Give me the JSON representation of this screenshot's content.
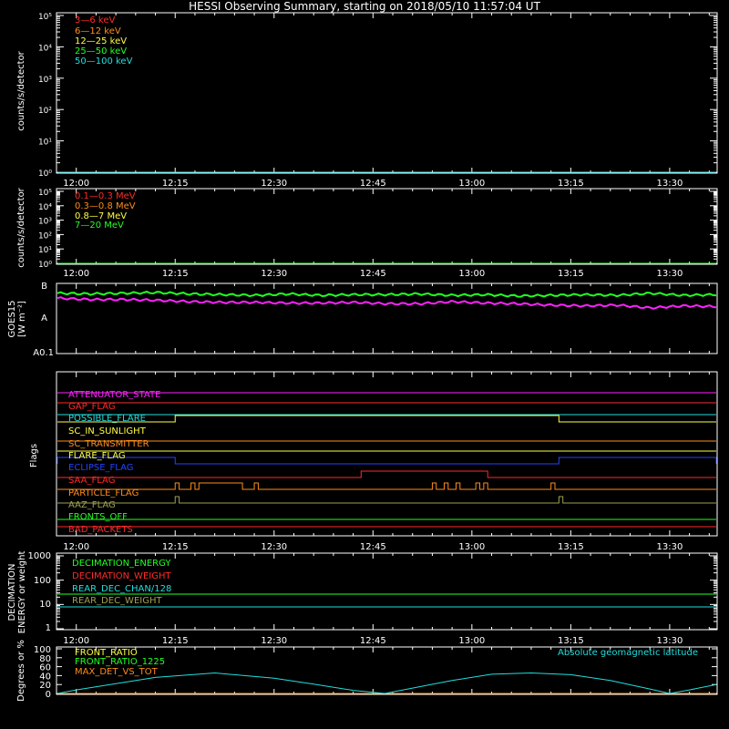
{
  "title": "HESSI Observing Summary, starting on 2018/05/10 11:57:04 UT",
  "colors": {
    "background": "#000000",
    "axes": "#ffffff",
    "red": "#ff2a2a",
    "orange": "#ff8c1a",
    "yellow": "#ffff44",
    "green": "#22ff22",
    "cyan": "#22dddd",
    "magenta": "#ff22ff",
    "blue": "#2244ff",
    "olive": "#a0a050"
  },
  "chart_data": [
    {
      "id": "count-rates",
      "type": "line",
      "ylabel": "counts/s/detector",
      "y_scale": "log",
      "ylim": [
        1,
        100000
      ],
      "y_tick_labels": [
        "10⁰",
        "10¹",
        "10²",
        "10³",
        "10⁴",
        "10⁵"
      ],
      "x_tick_labels": [
        "12:00",
        "12:15",
        "12:30",
        "12:45",
        "13:00",
        "13:15",
        "13:30"
      ],
      "series": [
        {
          "name": "3—6 keV",
          "color": "#ff2a2a",
          "values": []
        },
        {
          "name": "6—12 keV",
          "color": "#ff8c1a",
          "values": []
        },
        {
          "name": "12—25 keV",
          "color": "#ffff44",
          "values": []
        },
        {
          "name": "25—50 keV",
          "color": "#22ff22",
          "values": []
        },
        {
          "name": "50—100 keV",
          "color": "#22dddd",
          "values": [
            1,
            1
          ]
        }
      ]
    },
    {
      "id": "high-energy-rates",
      "type": "line",
      "ylabel": "counts/s/detector",
      "y_scale": "log",
      "ylim": [
        1,
        100000
      ],
      "y_tick_labels": [
        "10⁰",
        "10¹",
        "10²",
        "10³",
        "10⁴",
        "10⁵"
      ],
      "x_tick_labels": [
        "12:00",
        "12:15",
        "12:30",
        "12:45",
        "13:00",
        "13:15",
        "13:30"
      ],
      "series": [
        {
          "name": "0.1—0.3 MeV",
          "color": "#ff2a2a",
          "values": []
        },
        {
          "name": "0.3—0.8 MeV",
          "color": "#ff8c1a",
          "values": []
        },
        {
          "name": "0.8—7 MeV",
          "color": "#ffff44",
          "values": []
        },
        {
          "name": "7—20 MeV",
          "color": "#22ff22",
          "values": [
            1,
            1
          ]
        }
      ]
    },
    {
      "id": "goes",
      "type": "line",
      "ylabel": "GOES15",
      "ylabel2": "[W m⁻²]",
      "y_tick_labels": [
        "B",
        "A",
        "A0.1"
      ],
      "series": [
        {
          "color": "#22ff22",
          "x": [
            0,
            5,
            10,
            15,
            20,
            25,
            30,
            35,
            40,
            45,
            50,
            55,
            60,
            65,
            70,
            75,
            80,
            85,
            90,
            95,
            100
          ],
          "values": [
            8.6,
            8.5,
            8.6,
            8.7,
            8.5,
            8.4,
            8.3,
            8.5,
            8.3,
            8.4,
            8.4,
            8.5,
            8.3,
            8.4,
            8.2,
            8.3,
            8.4,
            8.3,
            8.6,
            8.3,
            8.4
          ]
        },
        {
          "color": "#ff22ff",
          "x": [
            0,
            5,
            10,
            15,
            20,
            25,
            30,
            35,
            40,
            45,
            50,
            55,
            60,
            65,
            70,
            75,
            80,
            85,
            90,
            95,
            100
          ],
          "values": [
            7.9,
            7.7,
            7.7,
            7.6,
            7.4,
            7.3,
            7.3,
            7.2,
            7.2,
            7.3,
            7.1,
            7.1,
            7.4,
            7.2,
            7.1,
            6.9,
            6.8,
            6.9,
            6.5,
            6.8,
            6.7
          ]
        }
      ]
    },
    {
      "id": "flags",
      "type": "line",
      "ylabel": "Flags",
      "x_tick_labels": [
        "12:00",
        "12:15",
        "12:30",
        "12:45",
        "13:00",
        "13:15",
        "13:30"
      ],
      "flags": [
        {
          "name": "ATTENUATOR_STATE",
          "color": "#ff22ff",
          "segments": []
        },
        {
          "name": "GAP_FLAG",
          "color": "#ff2a2a",
          "segments": []
        },
        {
          "name": "POSSIBLE_FLARE",
          "color": "#22dddd",
          "segments": []
        },
        {
          "name": "SC_IN_SUNLIGHT",
          "color": "#ffff44",
          "segments": [
            [
              12.25,
              13.22
            ]
          ]
        },
        {
          "name": "SC_TRANSMITTER",
          "color": "#ff8c1a",
          "segments": []
        },
        {
          "name": "FLARE_FLAG",
          "color": "#ffff44",
          "segments": []
        },
        {
          "name": "ECLIPSE_FLAG",
          "color": "#2244ff",
          "segments": [
            [
              11.95,
              12.25
            ],
            [
              13.22,
              13.62
            ]
          ]
        },
        {
          "name": "SAA_FLAG",
          "color": "#ff2a2a",
          "segments": [
            [
              12.72,
              13.04
            ]
          ]
        },
        {
          "name": "PARTICLE_FLAG",
          "color": "#ff8c1a",
          "segments": [
            [
              12.25,
              12.26
            ],
            [
              12.29,
              12.3
            ],
            [
              12.31,
              12.42
            ],
            [
              12.45,
              12.46
            ],
            [
              12.9,
              12.91
            ],
            [
              12.93,
              12.94
            ],
            [
              12.96,
              12.97
            ],
            [
              13.01,
              13.02
            ],
            [
              13.03,
              13.04
            ],
            [
              13.2,
              13.21
            ]
          ]
        },
        {
          "name": "AAZ_FLAG",
          "color": "#a0a050",
          "segments": [
            [
              12.25,
              12.26
            ],
            [
              13.22,
              13.23
            ]
          ]
        },
        {
          "name": "FRONTS_OFF",
          "color": "#22ff22",
          "segments": []
        },
        {
          "name": "BAD_PACKETS",
          "color": "#ff2a2a",
          "segments": []
        }
      ]
    },
    {
      "id": "decimation",
      "type": "line",
      "ylabel": "DECIMATION",
      "ylabel2": "ENERGY or weight",
      "y_scale": "log",
      "ylim": [
        1,
        1000
      ],
      "y_tick_labels": [
        "1",
        "10",
        "100",
        "1000"
      ],
      "x_tick_labels": [
        "12:00",
        "12:15",
        "12:30",
        "12:45",
        "13:00",
        "13:15",
        "13:30"
      ],
      "series": [
        {
          "name": "DECIMATION_ENERGY",
          "color": "#22ff22",
          "values": [
            30,
            30
          ]
        },
        {
          "name": "DECIMATION_WEIGHT",
          "color": "#ff2a2a",
          "values": []
        },
        {
          "name": "REAR_DEC_CHAN/128",
          "color": "#22dddd",
          "values": [
            8,
            8
          ]
        },
        {
          "name": "REAR_DEC_WEIGHT",
          "color": "#a0a050",
          "values": []
        }
      ]
    },
    {
      "id": "ratios",
      "type": "line",
      "ylabel": "Degrees or %",
      "ylim": [
        0,
        100
      ],
      "y_tick_labels": [
        "0",
        "20",
        "40",
        "60",
        "80",
        "100"
      ],
      "series": [
        {
          "name": "FRONT_RATIO",
          "color": "#ffff44",
          "values": []
        },
        {
          "name": "FRONT_RATIO_1225",
          "color": "#22ff22",
          "values": []
        },
        {
          "name": "MAX_DET_VS_TOT",
          "color": "#ff8c1a",
          "values": [
            0,
            0
          ]
        },
        {
          "name": "Absolute geomagnetic latitude",
          "color": "#22dddd",
          "x": [
            11.95,
            12.0,
            12.1,
            12.2,
            12.35,
            12.5,
            12.6,
            12.7,
            12.78,
            12.85,
            12.95,
            13.05,
            13.15,
            13.25,
            13.35,
            13.45,
            13.5,
            13.55,
            13.62
          ],
          "values": [
            0,
            8,
            22,
            36,
            46,
            34,
            21,
            7,
            0,
            12,
            29,
            43,
            46,
            42,
            29,
            10,
            0,
            8,
            20
          ]
        }
      ]
    }
  ]
}
